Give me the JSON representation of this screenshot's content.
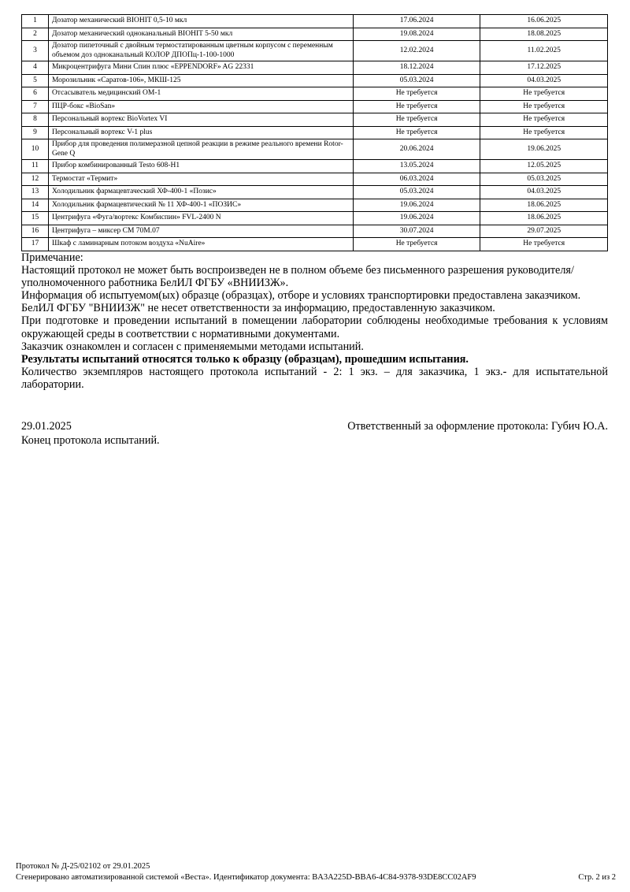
{
  "table": {
    "rows": [
      {
        "num": "1",
        "name": "Дозатор механический BIOHIT 0,5-10 мкл",
        "date_from": "17.06.2024",
        "date_to": "16.06.2025"
      },
      {
        "num": "2",
        "name": "Дозатор механический одноканальный BIOHIT 5-50 мкл",
        "date_from": "19.08.2024",
        "date_to": "18.08.2025"
      },
      {
        "num": "3",
        "name": "Дозатор пипеточный с двойным термостатированным цветным корпусом с переменным объемом доз одноканальный КОЛОР ДПОПц-1-100-1000",
        "date_from": "12.02.2024",
        "date_to": "11.02.2025"
      },
      {
        "num": "4",
        "name": "Микроцентрифуга Мини Спин плюс «EPPENDORF» AG 22331",
        "date_from": "18.12.2024",
        "date_to": "17.12.2025"
      },
      {
        "num": "5",
        "name": "Морозильник «Саратов-106», МКШ-125",
        "date_from": "05.03.2024",
        "date_to": "04.03.2025"
      },
      {
        "num": "6",
        "name": "Отсасыватель медицинский ОМ-1",
        "date_from": "Не требуется",
        "date_to": "Не требуется"
      },
      {
        "num": "7",
        "name": "ПЦР-бокс «BioSan»",
        "date_from": "Не требуется",
        "date_to": "Не требуется"
      },
      {
        "num": "8",
        "name": "Персональный вортекс BioVortex VI",
        "date_from": "Не требуется",
        "date_to": "Не требуется"
      },
      {
        "num": "9",
        "name": "Персональный вортекс V-1 plus",
        "date_from": "Не требуется",
        "date_to": "Не требуется"
      },
      {
        "num": "10",
        "name": "Прибор для проведения полимеразной цепной реакции в режиме реального времени Rotor-Gene Q",
        "date_from": "20.06.2024",
        "date_to": "19.06.2025"
      },
      {
        "num": "11",
        "name": "Прибор комбинированный Testo 608-H1",
        "date_from": "13.05.2024",
        "date_to": "12.05.2025"
      },
      {
        "num": "12",
        "name": "Термостат «Термит»",
        "date_from": "06.03.2024",
        "date_to": "05.03.2025"
      },
      {
        "num": "13",
        "name": "Холодильник фармацевтачеcкий ХФ-400-1 «Позис»",
        "date_from": "05.03.2024",
        "date_to": "04.03.2025"
      },
      {
        "num": "14",
        "name": "Холодильник фармацевтический № 11 ХФ-400-1 «ПОЗИС»",
        "date_from": "19.06.2024",
        "date_to": "18.06.2025"
      },
      {
        "num": "15",
        "name": "Центрифуга «Фуга/вортекс Комбиспин» FVL-2400 N",
        "date_from": "19.06.2024",
        "date_to": "18.06.2025"
      },
      {
        "num": "16",
        "name": "Центрифуга – миксер СМ 70М.07",
        "date_from": "30.07.2024",
        "date_to": "29.07.2025"
      },
      {
        "num": "17",
        "name": "Шкаф с ламинарным потоком воздуха «NuAire»",
        "date_from": "Не требуется",
        "date_to": "Не требуется"
      }
    ]
  },
  "notes": {
    "heading": "Примечание:",
    "p1": "Настоящий протокол не может быть воспроизведен не в полном объеме без письменного разрешения руководителя/уполномоченного работника БелИЛ ФГБУ «ВНИИЗЖ».",
    "p2": "Информация об испытуемом(ых) образце (образцах), отборе и условиях транспортировки предоставлена заказчиком.",
    "p3": "БелИЛ ФГБУ \"ВНИИЗЖ\" не несет ответственности за информацию, предоставленную заказчиком.",
    "p4": "При подготовке и проведении испытаний в помещении лаборатории соблюдены необходимые требования к условиям окружающей среды в соответствии с нормативными документами.",
    "p5": "Заказчик ознакомлен и согласен с применяемыми методами испытаний.",
    "p6": "Результаты испытаний относятся только к образцу (образцам), прошедшим испытания.",
    "p7": "Количество экземпляров настоящего протокола испытаний - 2: 1 экз. – для заказчика, 1 экз.- для испытательной лаборатории."
  },
  "signature": {
    "date": "29.01.2025",
    "responsible": "Ответственный за оформление протокола: Губич Ю.А.",
    "end": "Конец протокола испытаний."
  },
  "footer": {
    "protocol": "Протокол № Д-25/02102 от 29.01.2025",
    "generated": "Сгенерировано автоматизированной системой «Веста». Идентификатор документа: BA3A225D-BBA6-4C84-9378-93DE8CC02AF9",
    "page": "Стр. 2 из 2"
  }
}
